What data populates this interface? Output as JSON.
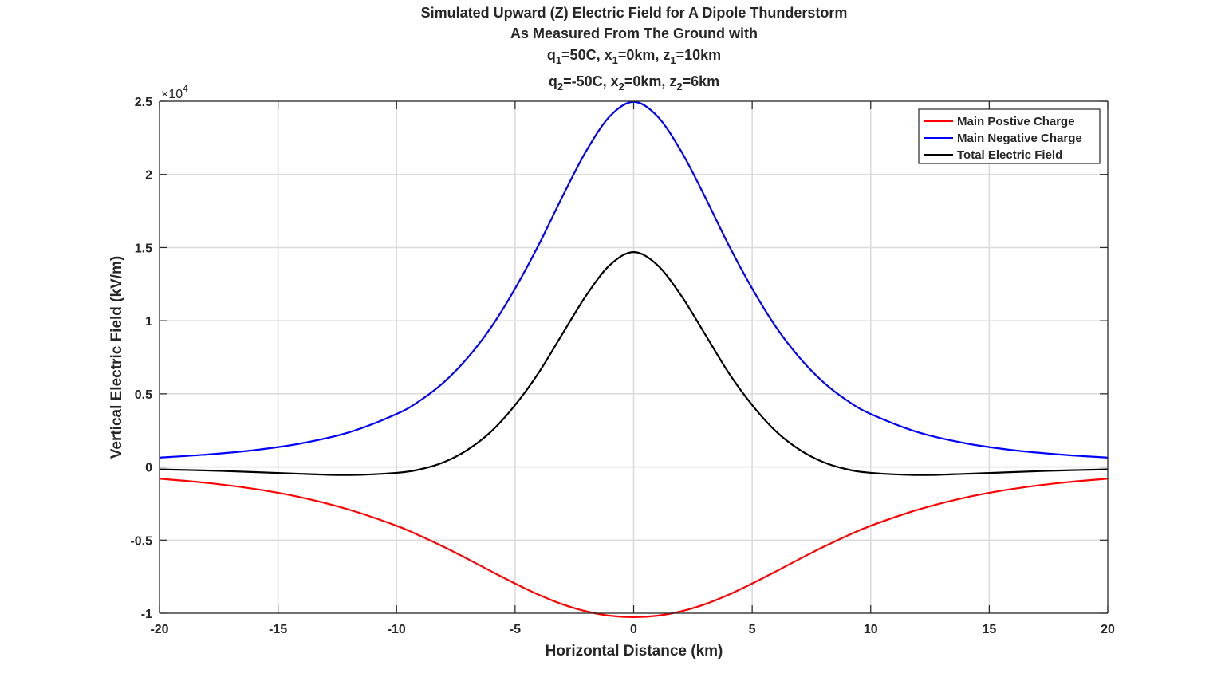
{
  "chart_data": {
    "type": "line",
    "title_lines": [
      "Simulated Upward (Z) Electric Field for A Dipole Thunderstorm",
      "As Measured From The Ground with"
    ],
    "title_charges": [
      {
        "q": "q",
        "q_sub": "1",
        "q_val": "=50C, x",
        "x_sub": "1",
        "x_val": "=0km, z",
        "z_sub": "1",
        "z_val": "=10km"
      },
      {
        "q": "q",
        "q_sub": "2",
        "q_val": "=-50C, x",
        "x_sub": "2",
        "x_val": "=0km, z",
        "z_sub": "2",
        "z_val": "=6km"
      }
    ],
    "xlabel": "Horizontal Distance (km)",
    "ylabel": "Vertical Electric Field (kV/m)",
    "y_exponent_base": "×10",
    "y_exponent_power": "4",
    "xlim": [
      -20,
      20
    ],
    "ylim": [
      -10000,
      25000
    ],
    "x_ticks": [
      -20,
      -15,
      -10,
      -5,
      0,
      5,
      10,
      15,
      20
    ],
    "x_tick_labels": [
      "-20",
      "-15",
      "-10",
      "-5",
      "0",
      "5",
      "10",
      "15",
      "20"
    ],
    "y_ticks": [
      -10000,
      -5000,
      0,
      5000,
      10000,
      15000,
      20000,
      25000
    ],
    "y_tick_labels": [
      "-1",
      "-0.5",
      "0",
      "0.5",
      "1",
      "1.5",
      "2",
      "2.5"
    ],
    "grid": true,
    "legend_position": "top-right",
    "series": [
      {
        "name": "Main Postive Charge",
        "color": "#ff0000",
        "x": [
          -20,
          -18,
          -16,
          -14,
          -12,
          -10,
          -9,
          -8,
          -7,
          -6,
          -5,
          -4,
          -3,
          -2,
          -1,
          0,
          1,
          2,
          3,
          4,
          5,
          6,
          7,
          8,
          9,
          10,
          12,
          14,
          16,
          18,
          20
        ],
        "values": [
          -805,
          -1090,
          -1500,
          -2090,
          -2920,
          -4020,
          -4710,
          -5470,
          -6290,
          -7140,
          -7970,
          -8740,
          -9390,
          -9870,
          -10170,
          -10270,
          -10170,
          -9870,
          -9390,
          -8740,
          -7970,
          -7140,
          -6290,
          -5470,
          -4710,
          -4020,
          -2920,
          -2090,
          -1500,
          -1090,
          -805
        ]
      },
      {
        "name": "Main Negative Charge",
        "color": "#0000ff",
        "x": [
          -20,
          -18,
          -16,
          -14,
          -12,
          -10,
          -9,
          -8,
          -7,
          -6,
          -5,
          -4,
          -3,
          -2,
          -1,
          0,
          1,
          2,
          3,
          4,
          5,
          6,
          7,
          8,
          9,
          10,
          12,
          14,
          16,
          18,
          20
        ],
        "values": [
          640,
          850,
          1150,
          1620,
          2370,
          3620,
          4550,
          5800,
          7470,
          9580,
          12200,
          15200,
          18500,
          21600,
          23980,
          24960,
          23980,
          21600,
          18500,
          15200,
          12200,
          9580,
          7470,
          5800,
          4550,
          3620,
          2370,
          1620,
          1150,
          850,
          640
        ]
      },
      {
        "name": "Total Electric Field",
        "color": "#000000",
        "x": [
          -20,
          -18,
          -16,
          -14,
          -12,
          -10,
          -9,
          -8,
          -7,
          -6,
          -5,
          -4,
          -3,
          -2,
          -1,
          0,
          1,
          2,
          3,
          4,
          5,
          6,
          7,
          8,
          9,
          10,
          12,
          14,
          16,
          18,
          20
        ],
        "values": [
          -165,
          -240,
          -350,
          -470,
          -550,
          -400,
          -160,
          330,
          1180,
          2440,
          4230,
          6460,
          9110,
          11730,
          13810,
          14690,
          13810,
          11730,
          9110,
          6460,
          4230,
          2440,
          1180,
          330,
          -160,
          -400,
          -550,
          -470,
          -350,
          -240,
          -165
        ]
      }
    ]
  }
}
